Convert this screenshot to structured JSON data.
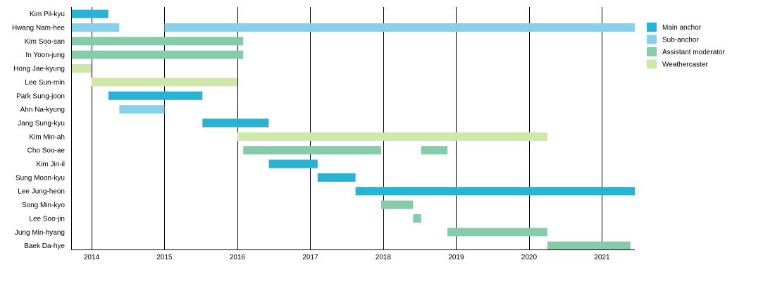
{
  "chart_data": {
    "type": "bar",
    "subtype": "timeline",
    "title": "",
    "xlabel": "",
    "ylabel": "",
    "xlim": [
      2013.72,
      2021.45
    ],
    "x_ticks": [
      "2014",
      "2015",
      "2016",
      "2017",
      "2018",
      "2019",
      "2020",
      "2021"
    ],
    "grid": true,
    "legend_position": "right",
    "legend": [
      {
        "key": "main",
        "label": "Main anchor",
        "color": "#29b2d4"
      },
      {
        "key": "sub",
        "label": "Sub-anchor",
        "color": "#87d2ea"
      },
      {
        "key": "assistant",
        "label": "Assistant moderator",
        "color": "#86ccaa"
      },
      {
        "key": "weather",
        "label": "Weathercaster",
        "color": "#cde8a8"
      }
    ],
    "categories": [
      "Kim Pil-kyu",
      "Hwang Nam-hee",
      "Kim Soo-san",
      "In Yoon-jung",
      "Hong Jae-kyung",
      "Lee Sun-min",
      "Park Sung-joon",
      "Ahn Na-kyung",
      "Jang Sung-kyu",
      "Kim Min-ah",
      "Cho Soo-ae",
      "Kim Jin-il",
      "Sung Moon-kyu",
      "Lee Jung-heon",
      "Song Min-kyo",
      "Lee Soo-jin",
      "Jung Min-hyang",
      "Baek Da-hye"
    ],
    "bars": [
      {
        "row": 0,
        "role": "main",
        "start": 2013.72,
        "end": 2014.23
      },
      {
        "row": 1,
        "role": "sub",
        "start": 2013.72,
        "end": 2014.38
      },
      {
        "row": 1,
        "role": "sub",
        "start": 2015.0,
        "end": 2021.45
      },
      {
        "row": 2,
        "role": "assistant",
        "start": 2013.72,
        "end": 2016.08
      },
      {
        "row": 3,
        "role": "assistant",
        "start": 2013.72,
        "end": 2016.08
      },
      {
        "row": 4,
        "role": "weather",
        "start": 2013.72,
        "end": 2014.0
      },
      {
        "row": 5,
        "role": "weather",
        "start": 2014.0,
        "end": 2016.0
      },
      {
        "row": 6,
        "role": "main",
        "start": 2014.23,
        "end": 2015.52
      },
      {
        "row": 7,
        "role": "sub",
        "start": 2014.38,
        "end": 2015.0
      },
      {
        "row": 8,
        "role": "main",
        "start": 2015.52,
        "end": 2016.43
      },
      {
        "row": 9,
        "role": "weather",
        "start": 2016.0,
        "end": 2020.25
      },
      {
        "row": 10,
        "role": "assistant",
        "start": 2016.08,
        "end": 2017.97
      },
      {
        "row": 10,
        "role": "assistant",
        "start": 2018.52,
        "end": 2018.88
      },
      {
        "row": 11,
        "role": "main",
        "start": 2016.43,
        "end": 2017.1
      },
      {
        "row": 12,
        "role": "main",
        "start": 2017.1,
        "end": 2017.62
      },
      {
        "row": 13,
        "role": "main",
        "start": 2017.62,
        "end": 2021.45
      },
      {
        "row": 14,
        "role": "assistant",
        "start": 2017.97,
        "end": 2018.41
      },
      {
        "row": 15,
        "role": "assistant",
        "start": 2018.41,
        "end": 2018.52
      },
      {
        "row": 16,
        "role": "assistant",
        "start": 2018.88,
        "end": 2020.25
      },
      {
        "row": 17,
        "role": "assistant",
        "start": 2020.25,
        "end": 2021.39
      }
    ]
  }
}
